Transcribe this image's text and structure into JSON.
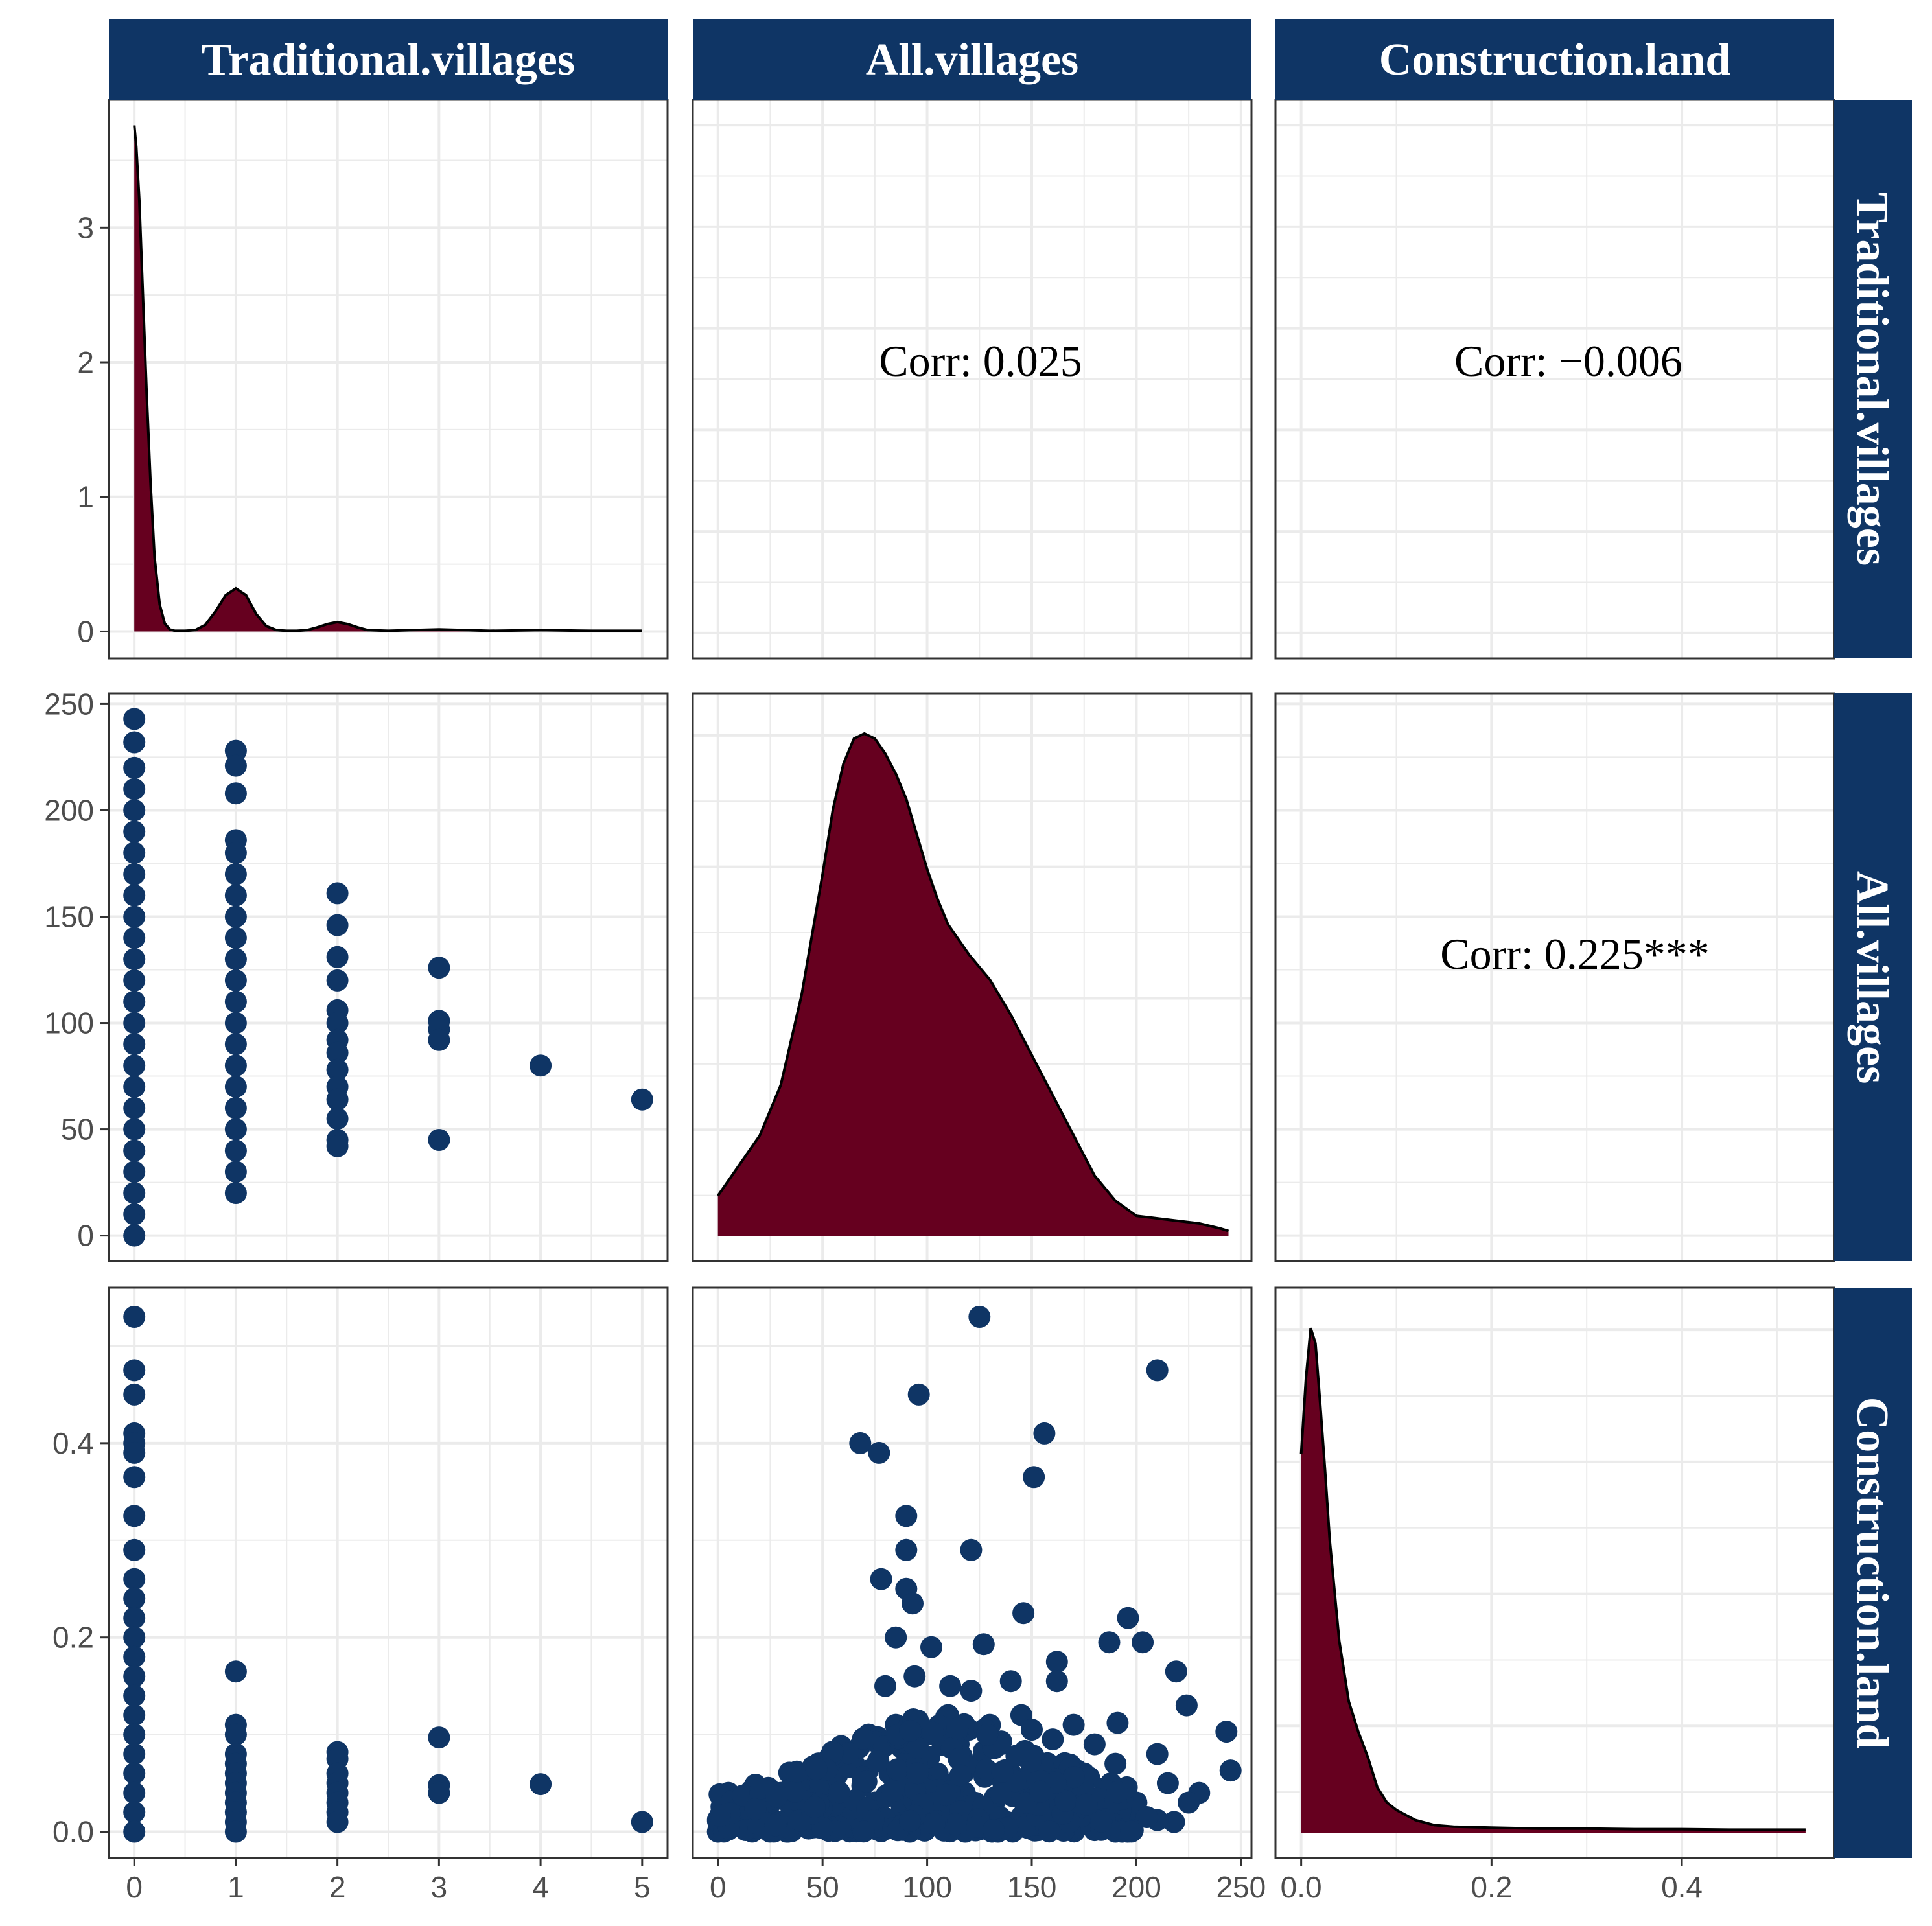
{
  "chart_data": {
    "type": "pairs",
    "title": "",
    "variables": [
      "Traditional.villages",
      "All.villages",
      "Construction.land"
    ],
    "colors": {
      "point": "#0f3565",
      "density_fill": "#66001f",
      "strip": "#0f3565",
      "grid": "#ebebeb",
      "border": "#333333"
    },
    "axes": [
      {
        "name": "Traditional.villages",
        "range": [
          -0.25,
          5.25
        ],
        "ticks": [
          0,
          1,
          2,
          3,
          4,
          5
        ],
        "tick_labels": [
          "0",
          "1",
          "2",
          "3",
          "4",
          "5"
        ]
      },
      {
        "name": "All.villages",
        "range": [
          -12,
          255
        ],
        "ticks": [
          0,
          50,
          100,
          150,
          200,
          250
        ],
        "tick_labels": [
          "0",
          "50",
          "100",
          "150",
          "200",
          "250"
        ]
      },
      {
        "name": "Construction.land",
        "range": [
          -0.027,
          0.56
        ],
        "ticks": [
          0.0,
          0.2,
          0.4
        ],
        "tick_labels": [
          "0.0",
          "0.2",
          "0.4"
        ]
      }
    ],
    "diag_density_ylim": [
      -0.2,
      3.95
    ],
    "diag_density_yticks": [
      0,
      1,
      2,
      3
    ],
    "diag_density_ytick_labels": [
      "0",
      "1",
      "2",
      "3"
    ],
    "densities": [
      {
        "variable": "Traditional.villages",
        "x": [
          0,
          0.02,
          0.05,
          0.08,
          0.12,
          0.16,
          0.2,
          0.25,
          0.3,
          0.35,
          0.4,
          0.5,
          0.6,
          0.7,
          0.8,
          0.9,
          1.0,
          1.1,
          1.2,
          1.3,
          1.4,
          1.5,
          1.6,
          1.7,
          1.8,
          1.9,
          2.0,
          2.1,
          2.2,
          2.3,
          2.5,
          3.0,
          3.5,
          4.0,
          4.5,
          5.0
        ],
        "y": [
          3.76,
          3.6,
          3.2,
          2.6,
          1.8,
          1.1,
          0.55,
          0.2,
          0.06,
          0.015,
          0.005,
          0.005,
          0.01,
          0.05,
          0.15,
          0.27,
          0.32,
          0.27,
          0.13,
          0.04,
          0.01,
          0.005,
          0.005,
          0.01,
          0.03,
          0.055,
          0.07,
          0.055,
          0.03,
          0.01,
          0.005,
          0.015,
          0.005,
          0.01,
          0.005,
          0.005
        ]
      },
      {
        "variable": "All.villages",
        "x": [
          0,
          10,
          20,
          30,
          40,
          50,
          55,
          60,
          65,
          70,
          75,
          80,
          85,
          90,
          95,
          100,
          105,
          110,
          120,
          130,
          140,
          150,
          160,
          170,
          180,
          190,
          200,
          210,
          220,
          230,
          240,
          244
        ],
        "y": [
          0.08,
          0.14,
          0.2,
          0.3,
          0.48,
          0.72,
          0.85,
          0.94,
          0.99,
          1.0,
          0.99,
          0.96,
          0.92,
          0.87,
          0.8,
          0.73,
          0.67,
          0.62,
          0.56,
          0.51,
          0.44,
          0.36,
          0.28,
          0.2,
          0.12,
          0.07,
          0.04,
          0.035,
          0.03,
          0.025,
          0.015,
          0.01
        ]
      },
      {
        "variable": "Construction.land",
        "x": [
          0,
          0.005,
          0.01,
          0.015,
          0.02,
          0.025,
          0.03,
          0.04,
          0.05,
          0.06,
          0.07,
          0.08,
          0.09,
          0.1,
          0.12,
          0.14,
          0.16,
          0.2,
          0.25,
          0.3,
          0.35,
          0.4,
          0.45,
          0.5,
          0.53
        ],
        "y": [
          0.75,
          0.9,
          1.0,
          0.97,
          0.85,
          0.72,
          0.58,
          0.38,
          0.26,
          0.2,
          0.15,
          0.09,
          0.06,
          0.045,
          0.025,
          0.015,
          0.012,
          0.01,
          0.008,
          0.008,
          0.007,
          0.007,
          0.006,
          0.006,
          0.006
        ]
      }
    ],
    "correlations": [
      {
        "row": 0,
        "col": 1,
        "label": "Corr: 0.025"
      },
      {
        "row": 0,
        "col": 2,
        "label": "Corr: −0.006"
      },
      {
        "row": 1,
        "col": 2,
        "label": "Corr: 0.225***"
      }
    ],
    "scatter_all_vs_trad": {
      "x_var": "Traditional.villages",
      "y_var": "All.villages",
      "points": [
        [
          0,
          243
        ],
        [
          0,
          232
        ],
        [
          0,
          220
        ],
        [
          0,
          210
        ],
        [
          0,
          200
        ],
        [
          0,
          190
        ],
        [
          0,
          180
        ],
        [
          0,
          170
        ],
        [
          0,
          160
        ],
        [
          0,
          150
        ],
        [
          0,
          140
        ],
        [
          0,
          130
        ],
        [
          0,
          120
        ],
        [
          0,
          110
        ],
        [
          0,
          100
        ],
        [
          0,
          90
        ],
        [
          0,
          80
        ],
        [
          0,
          70
        ],
        [
          0,
          60
        ],
        [
          0,
          50
        ],
        [
          0,
          40
        ],
        [
          0,
          30
        ],
        [
          0,
          20
        ],
        [
          0,
          10
        ],
        [
          0,
          0
        ],
        [
          1,
          228
        ],
        [
          1,
          221
        ],
        [
          1,
          208
        ],
        [
          1,
          186
        ],
        [
          1,
          180
        ],
        [
          1,
          170
        ],
        [
          1,
          160
        ],
        [
          1,
          150
        ],
        [
          1,
          140
        ],
        [
          1,
          130
        ],
        [
          1,
          120
        ],
        [
          1,
          110
        ],
        [
          1,
          100
        ],
        [
          1,
          90
        ],
        [
          1,
          80
        ],
        [
          1,
          70
        ],
        [
          1,
          60
        ],
        [
          1,
          50
        ],
        [
          1,
          40
        ],
        [
          1,
          30
        ],
        [
          1,
          20
        ],
        [
          2,
          161
        ],
        [
          2,
          146
        ],
        [
          2,
          131
        ],
        [
          2,
          120
        ],
        [
          2,
          106
        ],
        [
          2,
          100
        ],
        [
          2,
          92
        ],
        [
          2,
          86
        ],
        [
          2,
          78
        ],
        [
          2,
          70
        ],
        [
          2,
          64
        ],
        [
          2,
          55
        ],
        [
          2,
          45
        ],
        [
          2,
          42
        ],
        [
          3,
          126
        ],
        [
          3,
          101
        ],
        [
          3,
          97
        ],
        [
          3,
          92
        ],
        [
          3,
          45
        ],
        [
          4,
          80
        ],
        [
          5,
          64
        ]
      ]
    },
    "scatter_constr_vs_trad": {
      "x_var": "Traditional.villages",
      "y_var": "Construction.land",
      "points": [
        [
          0,
          0.53
        ],
        [
          0,
          0.475
        ],
        [
          0,
          0.45
        ],
        [
          0,
          0.41
        ],
        [
          0,
          0.4
        ],
        [
          0,
          0.39
        ],
        [
          0,
          0.365
        ],
        [
          0,
          0.325
        ],
        [
          0,
          0.29
        ],
        [
          0,
          0.26
        ],
        [
          0,
          0.24
        ],
        [
          0,
          0.22
        ],
        [
          0,
          0.2
        ],
        [
          0,
          0.18
        ],
        [
          0,
          0.16
        ],
        [
          0,
          0.14
        ],
        [
          0,
          0.12
        ],
        [
          0,
          0.1
        ],
        [
          0,
          0.08
        ],
        [
          0,
          0.06
        ],
        [
          0,
          0.04
        ],
        [
          0,
          0.02
        ],
        [
          0,
          0.0
        ],
        [
          1,
          0.165
        ],
        [
          1,
          0.11
        ],
        [
          1,
          0.1
        ],
        [
          1,
          0.08
        ],
        [
          1,
          0.07
        ],
        [
          1,
          0.06
        ],
        [
          1,
          0.05
        ],
        [
          1,
          0.04
        ],
        [
          1,
          0.03
        ],
        [
          1,
          0.02
        ],
        [
          1,
          0.01
        ],
        [
          1,
          0.0
        ],
        [
          2,
          0.082
        ],
        [
          2,
          0.075
        ],
        [
          2,
          0.06
        ],
        [
          2,
          0.05
        ],
        [
          2,
          0.04
        ],
        [
          2,
          0.03
        ],
        [
          2,
          0.02
        ],
        [
          2,
          0.01
        ],
        [
          3,
          0.097
        ],
        [
          3,
          0.048
        ],
        [
          3,
          0.04
        ],
        [
          4,
          0.049
        ],
        [
          5,
          0.01
        ]
      ]
    },
    "scatter_constr_vs_all": {
      "x_var": "All.villages",
      "y_var": "Construction.land",
      "points": [
        [
          125,
          0.53
        ],
        [
          210,
          0.475
        ],
        [
          96,
          0.45
        ],
        [
          156,
          0.41
        ],
        [
          68,
          0.4
        ],
        [
          77,
          0.39
        ],
        [
          151,
          0.365
        ],
        [
          90,
          0.325
        ],
        [
          121,
          0.29
        ],
        [
          90,
          0.29
        ],
        [
          78,
          0.26
        ],
        [
          90,
          0.25
        ],
        [
          93,
          0.235
        ],
        [
          146,
          0.225
        ],
        [
          196,
          0.22
        ],
        [
          187,
          0.195
        ],
        [
          203,
          0.195
        ],
        [
          127,
          0.193
        ],
        [
          85,
          0.2
        ],
        [
          102,
          0.19
        ],
        [
          219,
          0.165
        ],
        [
          140,
          0.155
        ],
        [
          162,
          0.175
        ],
        [
          162,
          0.155
        ],
        [
          80,
          0.15
        ],
        [
          94,
          0.16
        ],
        [
          111,
          0.15
        ],
        [
          121,
          0.145
        ],
        [
          191,
          0.112
        ],
        [
          224,
          0.13
        ],
        [
          243,
          0.103
        ],
        [
          245,
          0.063
        ],
        [
          210,
          0.08
        ],
        [
          215,
          0.05
        ],
        [
          230,
          0.04
        ],
        [
          225,
          0.03
        ],
        [
          218,
          0.01
        ],
        [
          210,
          0.012
        ],
        [
          198,
          0.02
        ],
        [
          5,
          0.04
        ],
        [
          10,
          0.02
        ],
        [
          2,
          0.01
        ],
        [
          0,
          0.0
        ],
        [
          15,
          0.005
        ],
        [
          20,
          0.03
        ],
        [
          25,
          0.015
        ],
        [
          30,
          0.04
        ],
        [
          35,
          0.025
        ],
        [
          40,
          0.05
        ],
        [
          45,
          0.03
        ],
        [
          50,
          0.06
        ],
        [
          55,
          0.045
        ],
        [
          60,
          0.08
        ],
        [
          62,
          0.02
        ],
        [
          65,
          0.07
        ],
        [
          70,
          0.05
        ],
        [
          72,
          0.1
        ],
        [
          75,
          0.03
        ],
        [
          80,
          0.09
        ],
        [
          82,
          0.06
        ],
        [
          85,
          0.11
        ],
        [
          88,
          0.04
        ],
        [
          95,
          0.08
        ],
        [
          100,
          0.1
        ],
        [
          105,
          0.06
        ],
        [
          110,
          0.12
        ],
        [
          115,
          0.09
        ],
        [
          118,
          0.04
        ],
        [
          120,
          0.105
        ],
        [
          125,
          0.07
        ],
        [
          130,
          0.11
        ],
        [
          132,
          0.03
        ],
        [
          135,
          0.09
        ],
        [
          140,
          0.06
        ],
        [
          145,
          0.12
        ],
        [
          148,
          0.08
        ],
        [
          150,
          0.105
        ],
        [
          155,
          0.05
        ],
        [
          160,
          0.095
        ],
        [
          165,
          0.03
        ],
        [
          170,
          0.11
        ],
        [
          175,
          0.06
        ],
        [
          180,
          0.09
        ],
        [
          185,
          0.045
        ],
        [
          190,
          0.07
        ],
        [
          200,
          0.03
        ],
        [
          205,
          0.015
        ],
        [
          8,
          0.01
        ],
        [
          18,
          0.012
        ],
        [
          28,
          0.006
        ],
        [
          38,
          0.008
        ],
        [
          48,
          0.01
        ],
        [
          58,
          0.012
        ],
        [
          68,
          0.008
        ],
        [
          78,
          0.01
        ],
        [
          88,
          0.012
        ],
        [
          98,
          0.008
        ],
        [
          108,
          0.01
        ],
        [
          118,
          0.012
        ],
        [
          128,
          0.008
        ],
        [
          138,
          0.01
        ],
        [
          148,
          0.012
        ],
        [
          158,
          0.008
        ],
        [
          168,
          0.01
        ],
        [
          178,
          0.012
        ],
        [
          188,
          0.01
        ]
      ]
    },
    "scatter_constr_vs_all_cloud": {
      "description_only": false,
      "x_range": [
        0,
        200
      ],
      "max_y": 0.12,
      "count": 420,
      "seed": 7
    }
  }
}
